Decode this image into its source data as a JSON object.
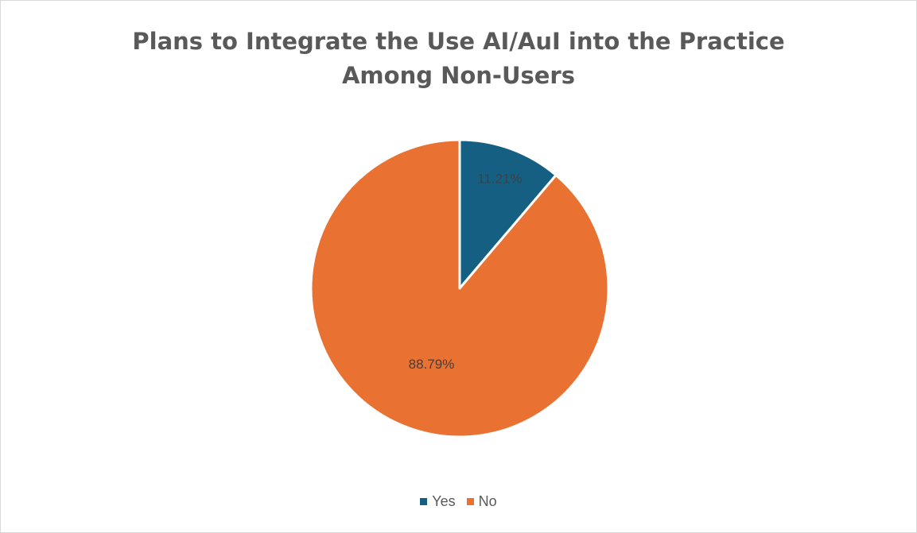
{
  "chart_data": {
    "type": "pie",
    "title_lines": [
      "Plans to Integrate the Use AI/AuI into the Practice",
      "Among Non-Users"
    ],
    "categories": [
      "Yes",
      "No"
    ],
    "values": [
      11.21,
      88.79
    ],
    "value_labels": [
      "11.21%",
      "88.79%"
    ],
    "colors": [
      "#156082",
      "#E97132"
    ],
    "legend": {
      "position": "bottom",
      "entries": [
        "Yes",
        "No"
      ]
    },
    "start_angle": "top, clockwise"
  }
}
